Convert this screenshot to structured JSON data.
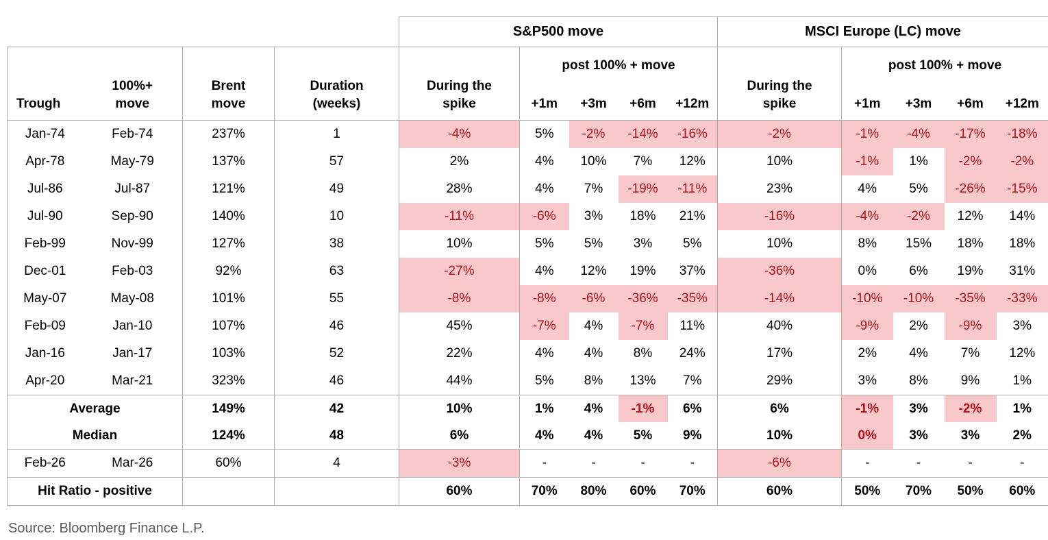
{
  "colors": {
    "highlight_bg": "#f9c8cb",
    "highlight_text": "#b01217",
    "border": "#adadad",
    "source_text": "#5a5a5a"
  },
  "header": {
    "sp_group": "S&P500 move",
    "msci_group": "MSCI Europe (LC) move",
    "post_move": "post 100% + move",
    "trough": "Trough",
    "move_100": "100%+\nmove",
    "brent": "Brent\nmove",
    "duration": "Duration\n(weeks)",
    "during_spike": "During the\nspike",
    "horizons": [
      "+1m",
      "+3m",
      "+6m",
      "+12m"
    ]
  },
  "chart_data": {
    "type": "table",
    "column_groups": [
      "S&P500 move",
      "MSCI Europe (LC) move"
    ],
    "columns": [
      "Trough",
      "100%+ move",
      "Brent move",
      "Duration (weeks)",
      "During the spike",
      "+1m",
      "+3m",
      "+6m",
      "+12m",
      "During the spike",
      "+1m",
      "+3m",
      "+6m",
      "+12m"
    ],
    "rows": [
      {
        "trough": "Jan-74",
        "move": "Feb-74",
        "brent": "237%",
        "duration": "1",
        "sp": [
          "-4%",
          "5%",
          "-2%",
          "-14%",
          "-16%"
        ],
        "sp_hl": [
          1,
          0,
          1,
          1,
          1
        ],
        "msci": [
          "-2%",
          "-1%",
          "-4%",
          "-17%",
          "-18%"
        ],
        "msci_hl": [
          1,
          1,
          1,
          1,
          1
        ]
      },
      {
        "trough": "Apr-78",
        "move": "May-79",
        "brent": "137%",
        "duration": "57",
        "sp": [
          "2%",
          "4%",
          "10%",
          "7%",
          "12%"
        ],
        "sp_hl": [
          0,
          0,
          0,
          0,
          0
        ],
        "msci": [
          "10%",
          "-1%",
          "1%",
          "-2%",
          "-2%"
        ],
        "msci_hl": [
          0,
          1,
          0,
          1,
          1
        ]
      },
      {
        "trough": "Jul-86",
        "move": "Jul-87",
        "brent": "121%",
        "duration": "49",
        "sp": [
          "28%",
          "4%",
          "7%",
          "-19%",
          "-11%"
        ],
        "sp_hl": [
          0,
          0,
          0,
          1,
          1
        ],
        "msci": [
          "23%",
          "4%",
          "5%",
          "-26%",
          "-15%"
        ],
        "msci_hl": [
          0,
          0,
          0,
          1,
          1
        ]
      },
      {
        "trough": "Jul-90",
        "move": "Sep-90",
        "brent": "140%",
        "duration": "10",
        "sp": [
          "-11%",
          "-6%",
          "3%",
          "18%",
          "21%"
        ],
        "sp_hl": [
          1,
          1,
          0,
          0,
          0
        ],
        "msci": [
          "-16%",
          "-4%",
          "-2%",
          "12%",
          "14%"
        ],
        "msci_hl": [
          1,
          1,
          1,
          0,
          0
        ]
      },
      {
        "trough": "Feb-99",
        "move": "Nov-99",
        "brent": "127%",
        "duration": "38",
        "sp": [
          "10%",
          "5%",
          "5%",
          "3%",
          "5%"
        ],
        "sp_hl": [
          0,
          0,
          0,
          0,
          0
        ],
        "msci": [
          "10%",
          "8%",
          "15%",
          "18%",
          "18%"
        ],
        "msci_hl": [
          0,
          0,
          0,
          0,
          0
        ]
      },
      {
        "trough": "Dec-01",
        "move": "Feb-03",
        "brent": "92%",
        "duration": "63",
        "sp": [
          "-27%",
          "4%",
          "12%",
          "19%",
          "37%"
        ],
        "sp_hl": [
          1,
          0,
          0,
          0,
          0
        ],
        "msci": [
          "-36%",
          "0%",
          "6%",
          "19%",
          "31%"
        ],
        "msci_hl": [
          1,
          0,
          0,
          0,
          0
        ]
      },
      {
        "trough": "May-07",
        "move": "May-08",
        "brent": "101%",
        "duration": "55",
        "sp": [
          "-8%",
          "-8%",
          "-6%",
          "-36%",
          "-35%"
        ],
        "sp_hl": [
          1,
          1,
          1,
          1,
          1
        ],
        "msci": [
          "-14%",
          "-10%",
          "-10%",
          "-35%",
          "-33%"
        ],
        "msci_hl": [
          1,
          1,
          1,
          1,
          1
        ]
      },
      {
        "trough": "Feb-09",
        "move": "Jan-10",
        "brent": "107%",
        "duration": "46",
        "sp": [
          "45%",
          "-7%",
          "4%",
          "-7%",
          "11%"
        ],
        "sp_hl": [
          0,
          1,
          0,
          1,
          0
        ],
        "msci": [
          "40%",
          "-9%",
          "2%",
          "-9%",
          "3%"
        ],
        "msci_hl": [
          0,
          1,
          0,
          1,
          0
        ]
      },
      {
        "trough": "Jan-16",
        "move": "Jan-17",
        "brent": "103%",
        "duration": "52",
        "sp": [
          "22%",
          "4%",
          "4%",
          "8%",
          "24%"
        ],
        "sp_hl": [
          0,
          0,
          0,
          0,
          0
        ],
        "msci": [
          "17%",
          "2%",
          "4%",
          "7%",
          "12%"
        ],
        "msci_hl": [
          0,
          0,
          0,
          0,
          0
        ]
      },
      {
        "trough": "Apr-20",
        "move": "Mar-21",
        "brent": "323%",
        "duration": "46",
        "sp": [
          "44%",
          "5%",
          "8%",
          "13%",
          "7%"
        ],
        "sp_hl": [
          0,
          0,
          0,
          0,
          0
        ],
        "msci": [
          "29%",
          "3%",
          "8%",
          "9%",
          "1%"
        ],
        "msci_hl": [
          0,
          0,
          0,
          0,
          0
        ]
      }
    ],
    "summary": [
      {
        "label": "Average",
        "brent": "149%",
        "duration": "42",
        "sp": [
          "10%",
          "1%",
          "4%",
          "-1%",
          "6%"
        ],
        "sp_hl": [
          0,
          0,
          0,
          1,
          0
        ],
        "msci": [
          "6%",
          "-1%",
          "3%",
          "-2%",
          "1%"
        ],
        "msci_hl": [
          0,
          1,
          0,
          1,
          0
        ]
      },
      {
        "label": "Median",
        "brent": "124%",
        "duration": "48",
        "sp": [
          "6%",
          "4%",
          "4%",
          "5%",
          "9%"
        ],
        "sp_hl": [
          0,
          0,
          0,
          0,
          0
        ],
        "msci": [
          "10%",
          "0%",
          "3%",
          "3%",
          "2%"
        ],
        "msci_hl": [
          0,
          1,
          0,
          0,
          0
        ]
      }
    ],
    "latest": {
      "trough": "Feb-26",
      "move": "Mar-26",
      "brent": "60%",
      "duration": "4",
      "sp": [
        "-3%",
        "-",
        "-",
        "-",
        "-"
      ],
      "sp_hl": [
        1,
        0,
        0,
        0,
        0
      ],
      "msci": [
        "-6%",
        "-",
        "-",
        "-",
        "-"
      ],
      "msci_hl": [
        1,
        0,
        0,
        0,
        0
      ]
    },
    "hit_ratio": {
      "label": "Hit Ratio - positive",
      "brent": "",
      "duration": "",
      "sp": [
        "60%",
        "70%",
        "80%",
        "60%",
        "70%"
      ],
      "msci": [
        "60%",
        "50%",
        "70%",
        "50%",
        "60%"
      ]
    }
  },
  "source": "Source: Bloomberg Finance L.P."
}
